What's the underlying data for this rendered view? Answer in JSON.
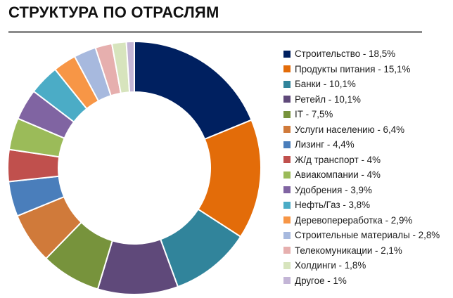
{
  "title": "СТРУКТУРА ПО ОТРАСЛЯМ",
  "chart_data": {
    "type": "pie",
    "donut": true,
    "legend_position": "right",
    "categories": [
      "Строительство",
      "Продукты питания",
      "Банки",
      "Ретейл",
      "IT",
      "Услуги населению",
      "Лизинг",
      "Ж/д транспорт",
      "Авиакомпании",
      "Удобрения",
      "Нефть/Газ",
      "Деревопереработка",
      "Строительные материалы",
      "Телекомуникации",
      "Холдинги",
      "Другое"
    ],
    "values": [
      18.5,
      15.1,
      10.1,
      10.1,
      7.5,
      6.4,
      4.4,
      4,
      4,
      3.9,
      3.8,
      2.9,
      2.8,
      2.1,
      1.8,
      1
    ],
    "value_labels": [
      "18,5%",
      "15,1%",
      "10,1%",
      "10,1%",
      "7,5%",
      "6,4%",
      "4,4%",
      "4%",
      "4%",
      "3,9%",
      "3,8%",
      "2,9%",
      "2,8%",
      "2,1%",
      "1,8%",
      "1%"
    ],
    "colors": [
      "#002060",
      "#E36C09",
      "#31849B",
      "#5F497A",
      "#77933C",
      "#D07A3A",
      "#4A7EBB",
      "#C0504D",
      "#9BBB59",
      "#8064A2",
      "#4BACC6",
      "#F79646",
      "#A7B9DE",
      "#E6AFAE",
      "#D7E4BD",
      "#C3B5D6"
    ]
  }
}
